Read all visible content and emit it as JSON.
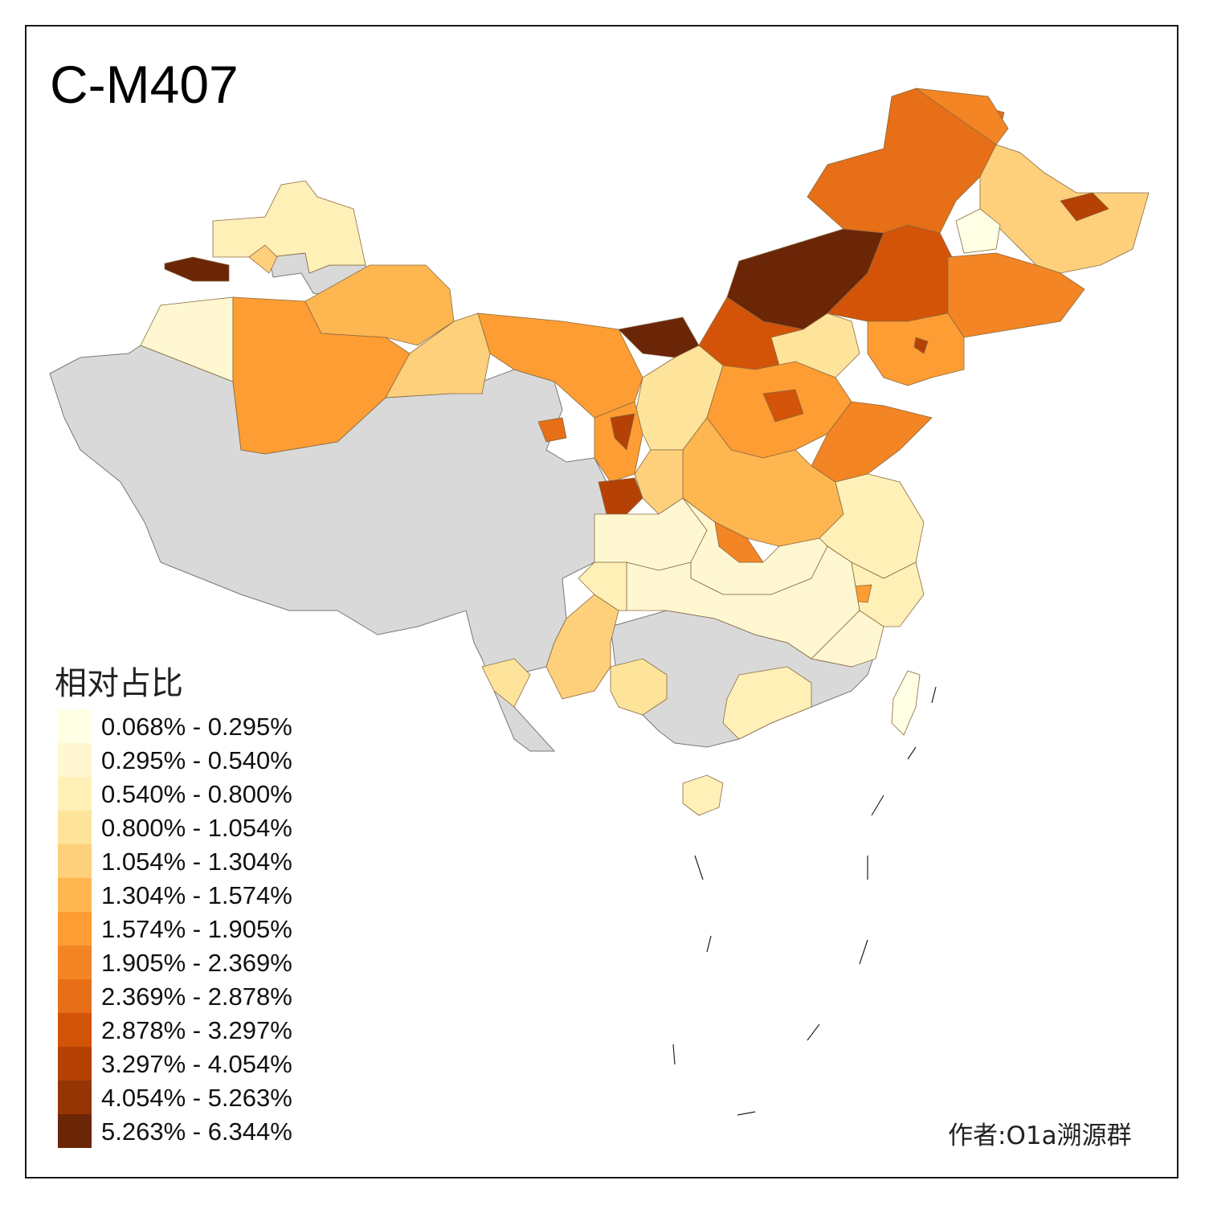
{
  "title": "C-M407",
  "legend": {
    "title": "相对占比",
    "items": [
      {
        "label": "0.068% - 0.295%",
        "color": "#ffffe5"
      },
      {
        "label": "0.295% - 0.540%",
        "color": "#fff7d1"
      },
      {
        "label": "0.540% - 0.800%",
        "color": "#fff0b8"
      },
      {
        "label": "0.800% - 1.054%",
        "color": "#fee39b"
      },
      {
        "label": "1.054% - 1.304%",
        "color": "#fed07c"
      },
      {
        "label": "1.304% - 1.574%",
        "color": "#feb651"
      },
      {
        "label": "1.574% - 1.905%",
        "color": "#fd9d33"
      },
      {
        "label": "1.905% - 2.369%",
        "color": "#f38524"
      },
      {
        "label": "2.369% - 2.878%",
        "color": "#e66f17"
      },
      {
        "label": "2.878% - 3.297%",
        "color": "#d35409"
      },
      {
        "label": "3.297% - 4.054%",
        "color": "#b54105"
      },
      {
        "label": "4.054% - 5.263%",
        "color": "#963504"
      },
      {
        "label": "5.263% - 6.344%",
        "color": "#6b2507"
      }
    ]
  },
  "no_data_color": "#d9d9d9",
  "credit": "作者:O1a溯源群"
}
